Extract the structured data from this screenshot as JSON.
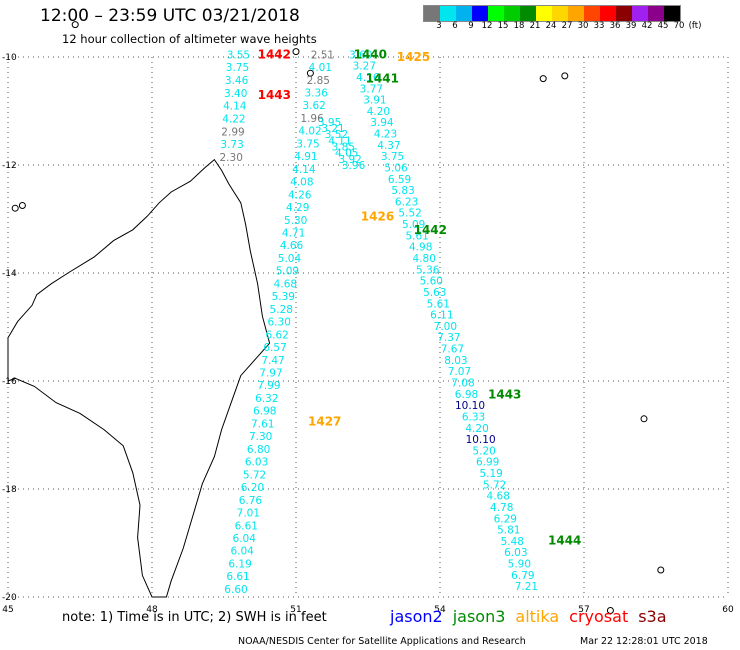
{
  "title": "12:00 – 23:59 UTC 03/21/2018",
  "subtitle": "12 hour collection of altimeter wave heights",
  "legend": {
    "labels": [
      "3",
      "6",
      "9",
      "12",
      "15",
      "18",
      "21",
      "24",
      "27",
      "30",
      "33",
      "36",
      "39",
      "42",
      "45",
      "70",
      "(ft)"
    ],
    "colors": [
      "#777777",
      "#00e5ee",
      "#00b2ee",
      "#0000ff",
      "#00ff00",
      "#00cd00",
      "#008b00",
      "#ffff00",
      "#ffd700",
      "#ffa500",
      "#ff4500",
      "#ff0000",
      "#8b0000",
      "#a020f0",
      "#8b008b",
      "#000000"
    ]
  },
  "axes": {
    "lon_ticks": [
      "45",
      "48",
      "51",
      "54",
      "57",
      "60"
    ],
    "lat_ticks": [
      "-10",
      "-12",
      "-14",
      "-16",
      "-18",
      "-20"
    ],
    "lon_range": [
      45,
      60
    ],
    "lat_range": [
      -20,
      -10
    ]
  },
  "note": "note: 1) Time is in UTC; 2) SWH is in feet",
  "satellites": [
    {
      "name": "jason2",
      "color": "#0000ff"
    },
    {
      "name": "jason3",
      "color": "#008b00"
    },
    {
      "name": "altika",
      "color": "#ffa500"
    },
    {
      "name": "cryosat",
      "color": "#ff0000"
    },
    {
      "name": "s3a",
      "color": "#8b0000"
    }
  ],
  "footer": "NOAA/NESDIS Center for Satellite Applications and Research",
  "footer_date": "Mar 22 12:28:01 UTC 2018",
  "tracks": [
    {
      "values": [
        "3.55",
        "3.75",
        "3.46",
        "3.40",
        "4.14",
        "4.22",
        "2.99",
        "3.73",
        "2.30"
      ],
      "colors": [
        "#00e5ee",
        "#00e5ee",
        "#00e5ee",
        "#00e5ee",
        "#00e5ee",
        "#00e5ee",
        "#777777",
        "#00e5ee",
        "#777777"
      ],
      "lon_start": 49.8,
      "lat_start": -9.95,
      "lon_end": 49.65,
      "lat_end": -11.85
    },
    {
      "values": [
        "2.51",
        "4.01",
        "2.85",
        "3.36",
        "3.62",
        "1.96",
        "4.02",
        "3.75",
        "4.91",
        "4.14",
        "4.08",
        "4.26",
        "4.29",
        "5.30",
        "4.71",
        "4.66",
        "5.04",
        "5.09",
        "4.68",
        "5.39",
        "5.28",
        "6.30",
        "6.62",
        "6.57",
        "7.47",
        "7.97",
        "7.99",
        "6.32",
        "6.98",
        "7.61",
        "7.30",
        "6.80",
        "6.03",
        "5.72",
        "6.20",
        "6.76",
        "7.01",
        "6.61",
        "6.04",
        "6.04",
        "6.19",
        "6.61",
        "6.60"
      ],
      "colors": [
        "#777777",
        "#00e5ee",
        "#777777",
        "#00e5ee",
        "#00e5ee",
        "#777777",
        "#00e5ee",
        "#00e5ee",
        "#00e5ee",
        "#00e5ee",
        "#00e5ee",
        "#00e5ee",
        "#00e5ee",
        "#00e5ee",
        "#00e5ee",
        "#00e5ee",
        "#00e5ee",
        "#00e5ee",
        "#00e5ee",
        "#00e5ee",
        "#00e5ee",
        "#00e5ee",
        "#00e5ee",
        "#00e5ee",
        "#00e5ee",
        "#00e5ee",
        "#00e5ee",
        "#00e5ee",
        "#00e5ee",
        "#00e5ee",
        "#00e5ee",
        "#00e5ee",
        "#00e5ee",
        "#00e5ee",
        "#00e5ee",
        "#00e5ee",
        "#00e5ee",
        "#00e5ee",
        "#00e5ee",
        "#00e5ee",
        "#00e5ee",
        "#00e5ee",
        "#00e5ee"
      ],
      "lon_start": 51.55,
      "lat_start": -9.95,
      "lon_end": 49.75,
      "lat_end": -19.85
    },
    {
      "values": [
        "3.60",
        "3.27",
        "4.16",
        "3.77",
        "3.91",
        "4.20",
        "3.94",
        "4.23",
        "4.37",
        "3.75",
        "5.06",
        "6.59",
        "5.83",
        "6.23",
        "5.52",
        "5.09",
        "5.61",
        "4.98",
        "4.80",
        "5.36",
        "5.60",
        "5.63",
        "5.61",
        "6.11",
        "7.00",
        "7.37",
        "7.67",
        "8.03",
        "7.07",
        "7.08",
        "6.98",
        "10.10",
        "6.33",
        "4.20",
        "10.10",
        "5.20",
        "6.99",
        "5.19",
        "5.72",
        "4.68",
        "4.78",
        "6.29",
        "5.81",
        "5.48",
        "6.03",
        "5.90",
        "6.79",
        "7.21"
      ],
      "colors": [
        "#00e5ee",
        "#00e5ee",
        "#00e5ee",
        "#00e5ee",
        "#00e5ee",
        "#00e5ee",
        "#00e5ee",
        "#00e5ee",
        "#00e5ee",
        "#00e5ee",
        "#00e5ee",
        "#00e5ee",
        "#00e5ee",
        "#00e5ee",
        "#00e5ee",
        "#00e5ee",
        "#00e5ee",
        "#00e5ee",
        "#00e5ee",
        "#00e5ee",
        "#00e5ee",
        "#00e5ee",
        "#00e5ee",
        "#00e5ee",
        "#00e5ee",
        "#00e5ee",
        "#00e5ee",
        "#00e5ee",
        "#00e5ee",
        "#00e5ee",
        "#00e5ee",
        "#00008b",
        "#00e5ee",
        "#00e5ee",
        "#00008b",
        "#00e5ee",
        "#00e5ee",
        "#00e5ee",
        "#00e5ee",
        "#00e5ee",
        "#00e5ee",
        "#00e5ee",
        "#00e5ee",
        "#00e5ee",
        "#00e5ee",
        "#00e5ee",
        "#00e5ee",
        "#00e5ee"
      ],
      "lon_start": 52.35,
      "lat_start": -9.95,
      "lon_end": 55.8,
      "lat_end": -19.8
    },
    {
      "values": [
        "3.95",
        "3.21",
        "3.52",
        "4.11",
        "3.85",
        "4.05",
        "3.92",
        "3.96"
      ],
      "colors": [
        "#00e5ee",
        "#00e5ee",
        "#00e5ee",
        "#00e5ee",
        "#00e5ee",
        "#00e5ee",
        "#00e5ee",
        "#00e5ee"
      ],
      "lon_start": 51.7,
      "lat_start": -11.2,
      "lon_end": 52.2,
      "lat_end": -12.0
    }
  ],
  "pass_labels": [
    {
      "text": "1442",
      "color": "#ff0000",
      "lon": 50.2,
      "lat": -9.95
    },
    {
      "text": "1443",
      "color": "#ff0000",
      "lon": 50.2,
      "lat": -10.7
    },
    {
      "text": "1440",
      "color": "#008b00",
      "lon": 52.2,
      "lat": -9.95
    },
    {
      "text": "1425",
      "color": "#ffa500",
      "lon": 53.1,
      "lat": -10.0
    },
    {
      "text": "1441",
      "color": "#008b00",
      "lon": 52.45,
      "lat": -10.4
    },
    {
      "text": "1426",
      "color": "#ffa500",
      "lon": 52.35,
      "lat": -12.95
    },
    {
      "text": "1442",
      "color": "#008b00",
      "lon": 53.45,
      "lat": -13.2
    },
    {
      "text": "1443",
      "color": "#008b00",
      "lon": 55.0,
      "lat": -16.25
    },
    {
      "text": "1427",
      "color": "#ffa500",
      "lon": 51.25,
      "lat": -16.75
    },
    {
      "text": "1444",
      "color": "#008b00",
      "lon": 56.25,
      "lat": -18.95
    }
  ]
}
